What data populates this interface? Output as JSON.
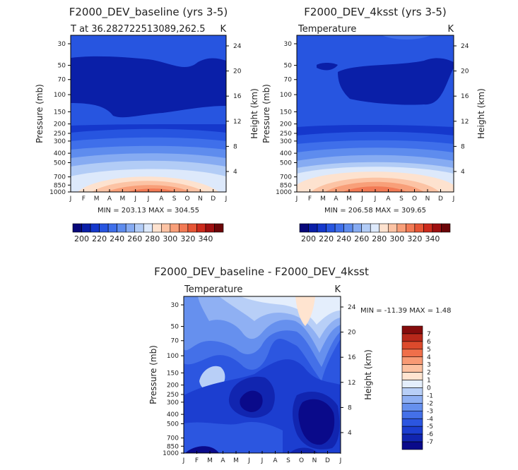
{
  "chart_data": [
    {
      "type": "heatmap",
      "title": "F2000_DEV_baseline (yrs 3-5)",
      "left_label": "T at 36.282722513089,262.5",
      "right_label": "K",
      "ylabel": "Pressure (mb)",
      "ylabel_right": "Height (km)",
      "x_ticks": [
        "J",
        "F",
        "M",
        "A",
        "M",
        "J",
        "J",
        "A",
        "S",
        "O",
        "N",
        "D",
        "J"
      ],
      "y_ticks": [
        "30",
        "50",
        "70",
        "100",
        "150",
        "200",
        "250",
        "300",
        "400",
        "500",
        "700",
        "850",
        "1000"
      ],
      "y_ticks_right": [
        "24",
        "20",
        "16",
        "12",
        "8",
        "4"
      ],
      "stats": "MIN = 203.13  MAX = 304.55",
      "colorbar_labels": [
        "200",
        "220",
        "240",
        "260",
        "280",
        "300",
        "320",
        "340"
      ],
      "min": 203.13,
      "max": 304.55
    },
    {
      "type": "heatmap",
      "title": "F2000_DEV_4ksst (yrs 3-5)",
      "left_label": "Temperature",
      "right_label": "K",
      "ylabel": "Pressure (mb)",
      "ylabel_right": "Height (km)",
      "x_ticks": [
        "J",
        "F",
        "M",
        "A",
        "M",
        "J",
        "J",
        "A",
        "S",
        "O",
        "N",
        "D",
        "J"
      ],
      "y_ticks": [
        "30",
        "50",
        "70",
        "100",
        "150",
        "200",
        "250",
        "300",
        "400",
        "500",
        "700",
        "850",
        "1000"
      ],
      "y_ticks_right": [
        "24",
        "20",
        "16",
        "12",
        "8",
        "4"
      ],
      "stats": "MIN = 206.58  MAX = 309.65",
      "colorbar_labels": [
        "200",
        "220",
        "240",
        "260",
        "280",
        "300",
        "320",
        "340"
      ],
      "min": 206.58,
      "max": 309.65
    },
    {
      "type": "heatmap",
      "title": "F2000_DEV_baseline - F2000_DEV_4ksst",
      "left_label": "Temperature",
      "right_label": "K",
      "ylabel": "Pressure (mb)",
      "ylabel_right": "Height (km)",
      "x_ticks": [
        "J",
        "F",
        "M",
        "A",
        "M",
        "J",
        "J",
        "A",
        "S",
        "O",
        "N",
        "D",
        "J"
      ],
      "y_ticks": [
        "30",
        "50",
        "70",
        "100",
        "150",
        "200",
        "250",
        "300",
        "400",
        "500",
        "700",
        "850",
        "1000"
      ],
      "y_ticks_right": [
        "24",
        "20",
        "16",
        "12",
        "8",
        "4"
      ],
      "stats": "MIN = -11.39  MAX =    1.48",
      "colorbar_labels": [
        "7",
        "6",
        "5",
        "4",
        "3",
        "2",
        "1",
        "0",
        "-1",
        "-2",
        "-3",
        "-4",
        "-5",
        "-6",
        "-7"
      ],
      "min": -11.39,
      "max": 1.48
    }
  ],
  "colors": {
    "abs_scale": [
      "#08087a",
      "#0a1fa8",
      "#1538cc",
      "#2755e0",
      "#3f6fea",
      "#5e8cee",
      "#86abf2",
      "#b2ccf6",
      "#dde9fb",
      "#fde2cf",
      "#fcc3a4",
      "#f89f79",
      "#f27a55",
      "#e65535",
      "#cc2a1c",
      "#9e0f10",
      "#6b0508"
    ],
    "diff_scale": [
      "#0a0a8a",
      "#1125b0",
      "#1c3ed0",
      "#2c56e0",
      "#4470e8",
      "#6690ee",
      "#8fb0f3",
      "#b8cff7",
      "#e4eefc",
      "#ffe4d0",
      "#fcc1a0",
      "#f89a74",
      "#f06f4a",
      "#dc4a2c",
      "#b8281a",
      "#850c0c"
    ]
  }
}
